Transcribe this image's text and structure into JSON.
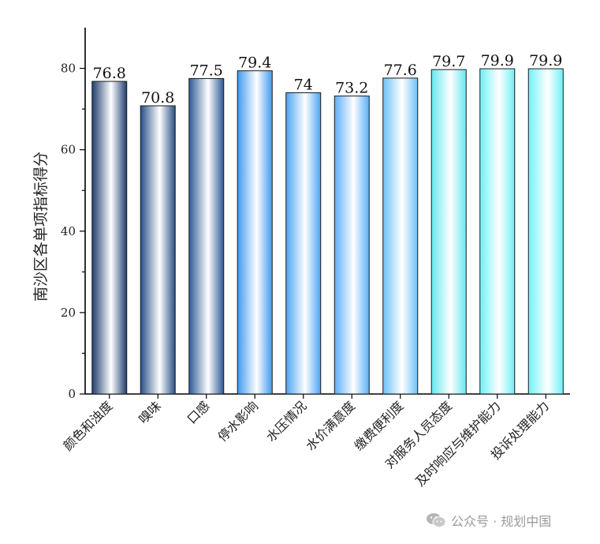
{
  "chart_data": {
    "type": "bar",
    "title": "",
    "xlabel": "",
    "ylabel": "南沙区各单项指标得分",
    "ylim": [
      0,
      90
    ],
    "yticks": [
      0,
      20,
      40,
      60,
      80
    ],
    "grid": false,
    "categories": [
      "颜色和浊度",
      "嗅味",
      "口感",
      "停水影响",
      "水压情况",
      "水价满意度",
      "缴费便利度",
      "对服务人员态度",
      "及时响应与维护能力",
      "投诉处理能力"
    ],
    "values": [
      76.8,
      70.8,
      77.5,
      79.4,
      74,
      73.2,
      77.6,
      79.7,
      79.9,
      79.9
    ],
    "data_labels": [
      "76.8",
      "70.8",
      "77.5",
      "79.4",
      "74",
      "73.2",
      "77.6",
      "79.7",
      "79.9",
      "79.9"
    ],
    "bar_colors": [
      "#1e3d6e",
      "#284f86",
      "#2a5a96",
      "#3f9af0",
      "#4aa4f2",
      "#5aaef5",
      "#6cc2f7",
      "#66e8f0",
      "#6ff0f4",
      "#6ff2f6"
    ]
  },
  "watermark": {
    "text": "公众号 · 规划中国",
    "icon": "wechat-icon"
  }
}
